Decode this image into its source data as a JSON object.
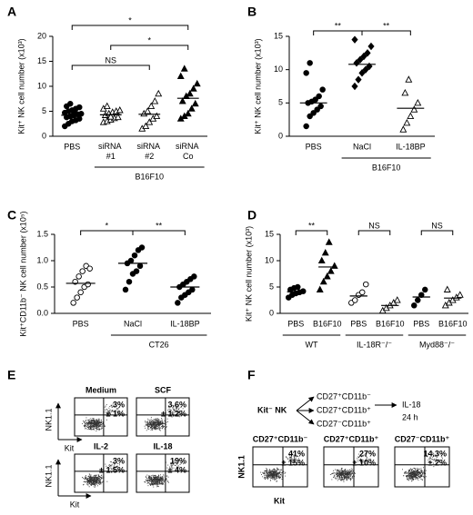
{
  "chart_data": [
    {
      "type": "dot",
      "panel_label": "A",
      "ylabel": "Kit⁺ NK cell number (x10³)",
      "categories": [
        "PBS",
        "siRNA #1",
        "siRNA #2",
        "siRNA Co"
      ],
      "markers": [
        "circle",
        "triangle-open",
        "triangle-open",
        "triangle"
      ],
      "points": [
        [
          2.0,
          2.5,
          3.0,
          3.2,
          3.5,
          3.8,
          4.0,
          4.2,
          4.4,
          4.5,
          4.7,
          5.0,
          5.2,
          5.5,
          5.8,
          6.0,
          6.5,
          4.8
        ],
        [
          2.8,
          3.0,
          3.3,
          3.6,
          3.8,
          4.2,
          4.5,
          4.8,
          5.0,
          5.2,
          5.5,
          6.0,
          3.9
        ],
        [
          1.5,
          2.0,
          2.8,
          3.5,
          4.0,
          4.5,
          5.0,
          6.0,
          7.0,
          8.5
        ],
        [
          3.5,
          4.0,
          4.5,
          5.5,
          6.5,
          7.0,
          8.0,
          8.5,
          9.5,
          10.5,
          12.0,
          13.5
        ]
      ],
      "means": [
        4.2,
        4.3,
        4.4,
        7.6
      ],
      "ylim": [
        0,
        20
      ],
      "yticks": [
        0,
        5,
        10,
        15,
        20
      ],
      "group_labels": [
        {
          "text": "B16F10",
          "from": 1,
          "to": 3
        }
      ],
      "brackets": [
        {
          "text": "NS",
          "from": 0,
          "to": 2
        },
        {
          "text": "*",
          "from": 1,
          "to": 3
        },
        {
          "text": "*",
          "from": 0,
          "to": 3
        }
      ]
    },
    {
      "type": "dot",
      "panel_label": "B",
      "ylabel": "Kit⁺ NK cell number (x10³)",
      "categories": [
        "PBS",
        "NaCl",
        "IL-18BP"
      ],
      "markers": [
        "circle",
        "diamond",
        "triangle-open"
      ],
      "points": [
        [
          1.5,
          3.0,
          3.5,
          4.0,
          4.5,
          5.0,
          5.2,
          5.5,
          6.0,
          7.0,
          9.5,
          11.0
        ],
        [
          7.5,
          8.5,
          9.5,
          10.0,
          10.5,
          11.0,
          11.5,
          12.0,
          12.5,
          13.5,
          14.5
        ],
        [
          1.0,
          2.0,
          3.0,
          4.0,
          5.0,
          6.5,
          8.5
        ]
      ],
      "means": [
        5.0,
        10.8,
        4.2
      ],
      "ylim": [
        0,
        15
      ],
      "yticks": [
        0,
        5,
        10,
        15
      ],
      "group_labels": [
        {
          "text": "B16F10",
          "from": 1,
          "to": 2
        }
      ],
      "brackets": [
        {
          "text": "**",
          "from": 0,
          "to": 1
        },
        {
          "text": "**",
          "from": 1,
          "to": 2
        }
      ]
    },
    {
      "type": "dot",
      "panel_label": "C",
      "ylabel": "Kit⁺CD11b⁻ NK cell number (x10⁵)",
      "categories": [
        "PBS",
        "NaCl",
        "IL-18BP"
      ],
      "markers": [
        "circle-open",
        "circle",
        "circle"
      ],
      "points": [
        [
          0.2,
          0.3,
          0.4,
          0.5,
          0.55,
          0.6,
          0.7,
          0.8,
          0.9,
          0.85
        ],
        [
          0.45,
          0.6,
          0.75,
          0.8,
          0.9,
          0.95,
          1.0,
          1.1,
          1.2,
          1.25
        ],
        [
          0.2,
          0.3,
          0.35,
          0.4,
          0.45,
          0.5,
          0.55,
          0.6,
          0.65,
          0.7
        ]
      ],
      "means": [
        0.57,
        0.95,
        0.5
      ],
      "ylim": [
        0,
        1.5
      ],
      "yticks": [
        {
          "value": 0,
          "label": "0.0"
        },
        0.5,
        {
          "value": 1,
          "label": "1.0"
        },
        1.5
      ],
      "group_labels": [
        {
          "text": "CT26",
          "from": 1,
          "to": 2
        }
      ],
      "brackets": [
        {
          "text": "*",
          "from": 0,
          "to": 1
        },
        {
          "text": "**",
          "from": 1,
          "to": 2
        }
      ]
    },
    {
      "type": "dot",
      "panel_label": "D",
      "ylabel": "Kit⁺ NK cell number (x10³)",
      "categories": [
        "PBS",
        "B16F10",
        "PBS",
        "B16F10",
        "PBS",
        "B16F10"
      ],
      "markers": [
        "circle",
        "triangle",
        "circle-open",
        "triangle-open",
        "circle",
        "triangle-open"
      ],
      "points": [
        [
          3.0,
          3.5,
          3.8,
          4.0,
          4.2,
          4.5,
          4.8,
          5.0
        ],
        [
          4.5,
          6.0,
          7.0,
          8.0,
          9.0,
          10.0,
          11.5,
          13.5
        ],
        [
          2.0,
          2.5,
          3.5,
          4.0,
          5.5
        ],
        [
          0.5,
          1.0,
          1.5,
          2.0,
          2.5
        ],
        [
          1.5,
          2.5,
          3.5,
          4.5
        ],
        [
          1.5,
          2.0,
          2.5,
          3.0,
          3.5,
          4.5
        ]
      ],
      "means": [
        4.1,
        8.8,
        3.3,
        1.5,
        3.1,
        2.9
      ],
      "ylim": [
        0,
        15
      ],
      "yticks": [
        0,
        5,
        10,
        15
      ],
      "group_labels": [
        {
          "text": "WT",
          "from": 0,
          "to": 1
        },
        {
          "text": "IL-18R⁻/⁻",
          "from": 2,
          "to": 3
        },
        {
          "text": "Myd88⁻/⁻",
          "from": 4,
          "to": 5
        }
      ],
      "brackets": [
        {
          "text": "**",
          "from": 0,
          "to": 1
        },
        {
          "text": "NS",
          "from": 2,
          "to": 3
        },
        {
          "text": "NS",
          "from": 4,
          "to": 5
        }
      ]
    }
  ],
  "panel_e": {
    "label": "E",
    "y_axis": "NK1.1",
    "x_axis": "Kit",
    "plots": [
      {
        "title": "Medium",
        "stat": "3%",
        "sd": "± 1%"
      },
      {
        "title": "SCF",
        "stat": "3.6%",
        "sd": "± 1.2%"
      },
      {
        "title": "IL-2",
        "stat": "3%",
        "sd": "± 1.5%"
      },
      {
        "title": "IL-18",
        "stat": "19%",
        "sd": "± 4%"
      }
    ]
  },
  "panel_f": {
    "label": "F",
    "source": "Kit⁻ NK",
    "subsets": [
      "CD27⁺CD11b⁻",
      "CD27⁺CD11b⁺",
      "CD27⁻CD11b⁺"
    ],
    "treatment": "IL-18",
    "duration": "24 h",
    "y_axis": "NK1.1",
    "x_axis": "Kit",
    "plots": [
      {
        "title": "CD27⁺CD11b⁻",
        "stat": "41%",
        "sd": "± 15%"
      },
      {
        "title": "CD27⁺CD11b⁺",
        "stat": "27%",
        "sd": "± 10%"
      },
      {
        "title": "CD27⁻CD11b⁺",
        "stat": "14.3%",
        "sd": "± 2%"
      }
    ]
  }
}
